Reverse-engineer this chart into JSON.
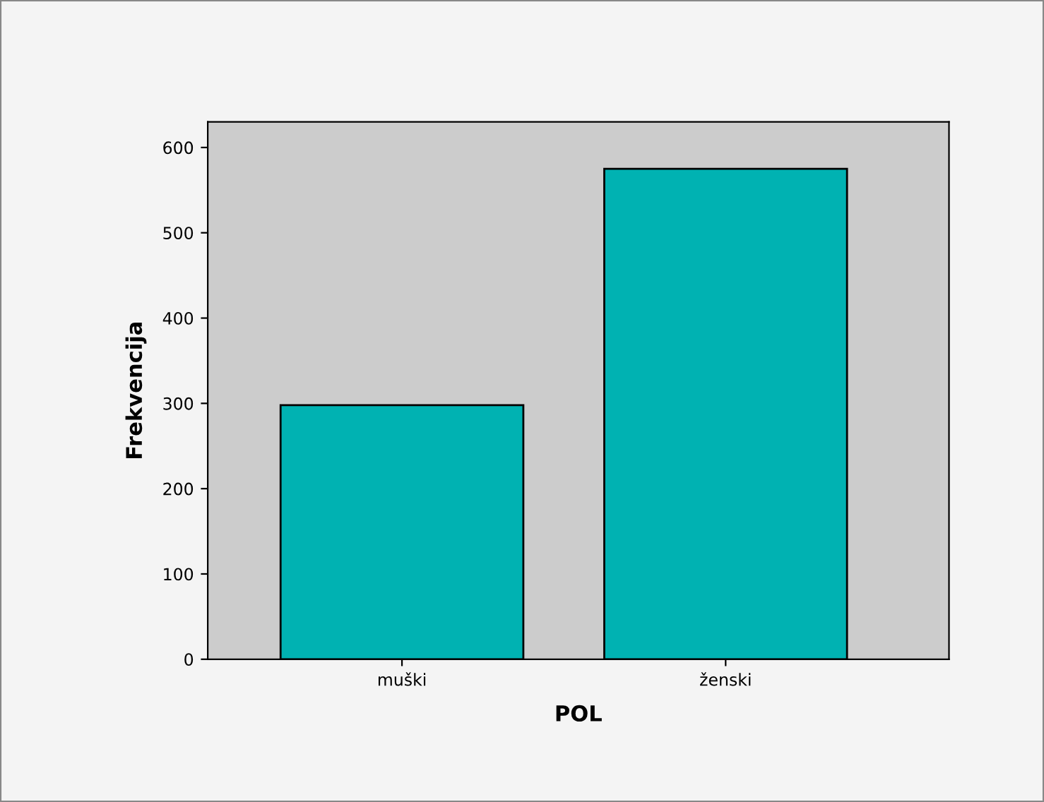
{
  "chart_data": {
    "type": "bar",
    "xlabel": "POL",
    "ylabel": "Frekvencija",
    "categories": [
      "muški",
      "ženski"
    ],
    "values": [
      298,
      575
    ],
    "color": "#00b2b2",
    "ylim": [
      0,
      630
    ],
    "yticks": [
      0,
      100,
      200,
      300,
      400,
      500,
      600
    ],
    "grid": false
  }
}
